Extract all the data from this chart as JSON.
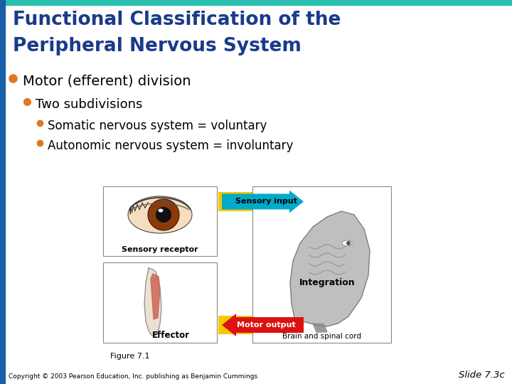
{
  "bg_color": "#ffffff",
  "top_bar_color": "#2abfb0",
  "left_bar_color": "#1a5fa8",
  "title_line1": "Functional Classification of the",
  "title_line2": "Peripheral Nervous System",
  "title_color": "#1a3a8a",
  "bullet_color": "#e07820",
  "bullet1_text": "Motor (efferent) division",
  "bullet2_text": "Two subdivisions",
  "bullet3_text": "Somatic nervous system = voluntary",
  "bullet4_text": "Autonomic nervous system = involuntary",
  "footer_text": "Copyright © 2003 Pearson Education, Inc. publishing as Benjamin Cummings",
  "slide_label": "Slide 7.3c",
  "figure_label": "Figure 7.1",
  "effector_label": "Effector",
  "sensory_receptor_label": "Sensory receptor",
  "sensory_input_label": "Sensory input",
  "motor_output_label": "Motor output",
  "integration_label": "Integration",
  "brain_label": "Brain and spinal cord",
  "yellow_color": "#f5c800",
  "cyan_color": "#00aac8",
  "red_color": "#dd1111",
  "gray_head_color": "#b0b0b0"
}
